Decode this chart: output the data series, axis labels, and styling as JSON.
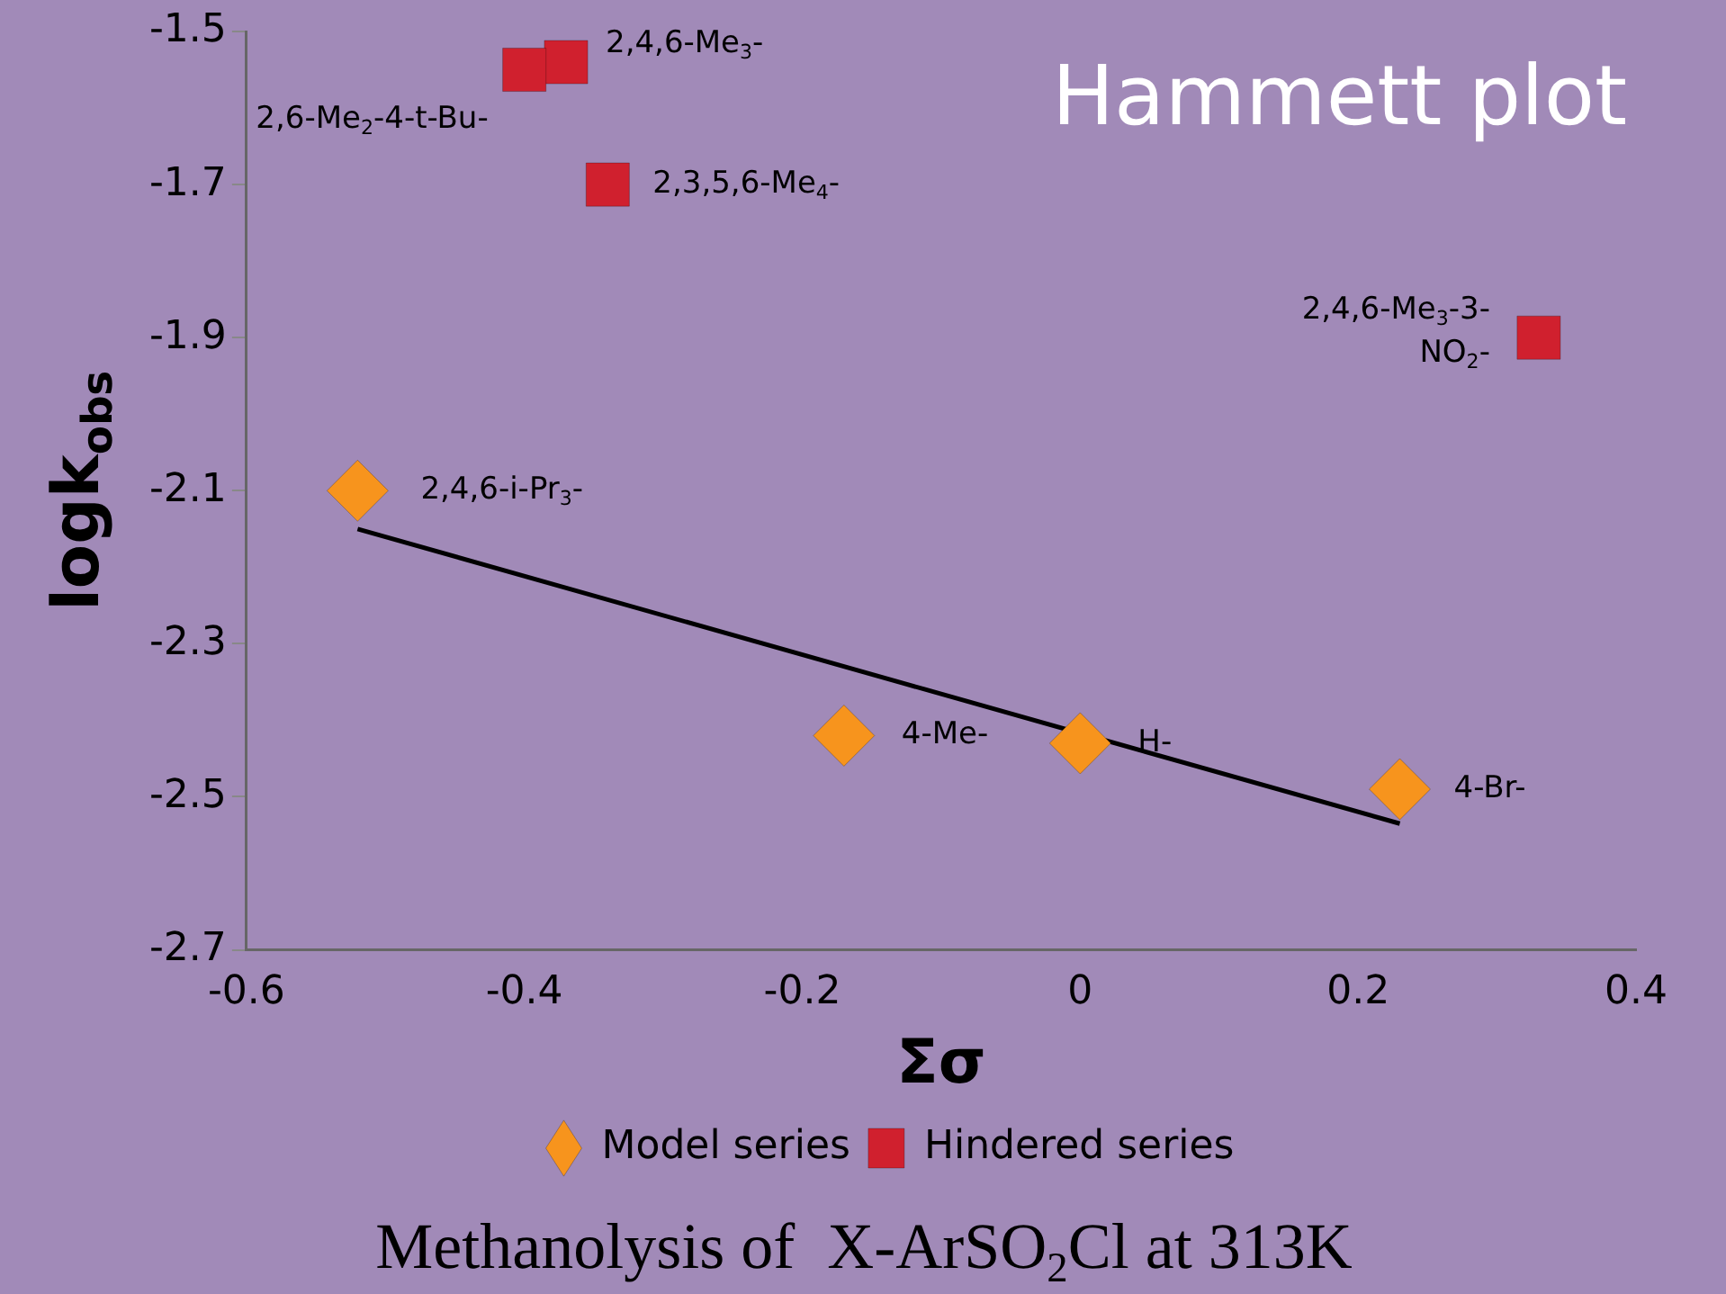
{
  "chart_data": {
    "type": "scatter",
    "title": "Hammett plot",
    "xlabel": "Σσ",
    "ylabel": "logk$_{obs}$",
    "xlim": [
      -0.6,
      0.4
    ],
    "xticks": [
      -0.6,
      -0.4,
      -0.2,
      0,
      0.2,
      0.4
    ],
    "ylim": [
      -2.7,
      -1.5
    ],
    "yticks": [
      -2.7,
      -2.5,
      -2.3,
      -2.1,
      -1.9,
      -1.7,
      -1.5
    ],
    "grid": false,
    "legend": "bottom",
    "series": [
      {
        "name": "Model series",
        "color": "#f7941d",
        "marker": "diamond",
        "x": [
          -0.52,
          -0.17,
          0.0,
          0.23
        ],
        "values": [
          -2.1,
          -2.42,
          -2.43,
          -2.49
        ]
      },
      {
        "name": "Hindered series",
        "color": "#d0202e",
        "marker": "square",
        "x": [
          -0.37,
          -0.4,
          -0.34,
          0.33
        ],
        "values": [
          -1.54,
          -1.55,
          -1.7,
          -1.9
        ]
      },
      {
        "type": "line",
        "color": "#000000",
        "marker": "none",
        "x": [
          -0.52,
          0.23
        ],
        "values": [
          -2.15,
          -2.535
        ]
      }
    ],
    "annotations": [
      {
        "text": "2,4,6-i-Pr$_{3}$-",
        "x": -0.52,
        "y": -2.1
      },
      {
        "text": "4-Me-",
        "x": -0.17,
        "y": -2.42
      },
      {
        "text": "H-",
        "x": 0.0,
        "y": -2.43
      },
      {
        "text": "4-Br-",
        "x": 0.23,
        "y": -2.49
      },
      {
        "text": "2,4,6-Me$_{3}$-",
        "x": -0.37,
        "y": -1.54
      },
      {
        "text": "2,6-Me$_{2}$-4-t-Bu-",
        "x": -0.4,
        "y": -1.55
      },
      {
        "text": "2,3,5,6-Me$_{4}$-",
        "x": -0.34,
        "y": -1.7
      },
      {
        "text": "2,4,6-Me$_{3}$-3-\nNO$_{2}$-",
        "x": 0.33,
        "y": -1.9
      },
      "Methanolysis of  X-ArSO$_{2}$Cl at 313K"
    ]
  }
}
